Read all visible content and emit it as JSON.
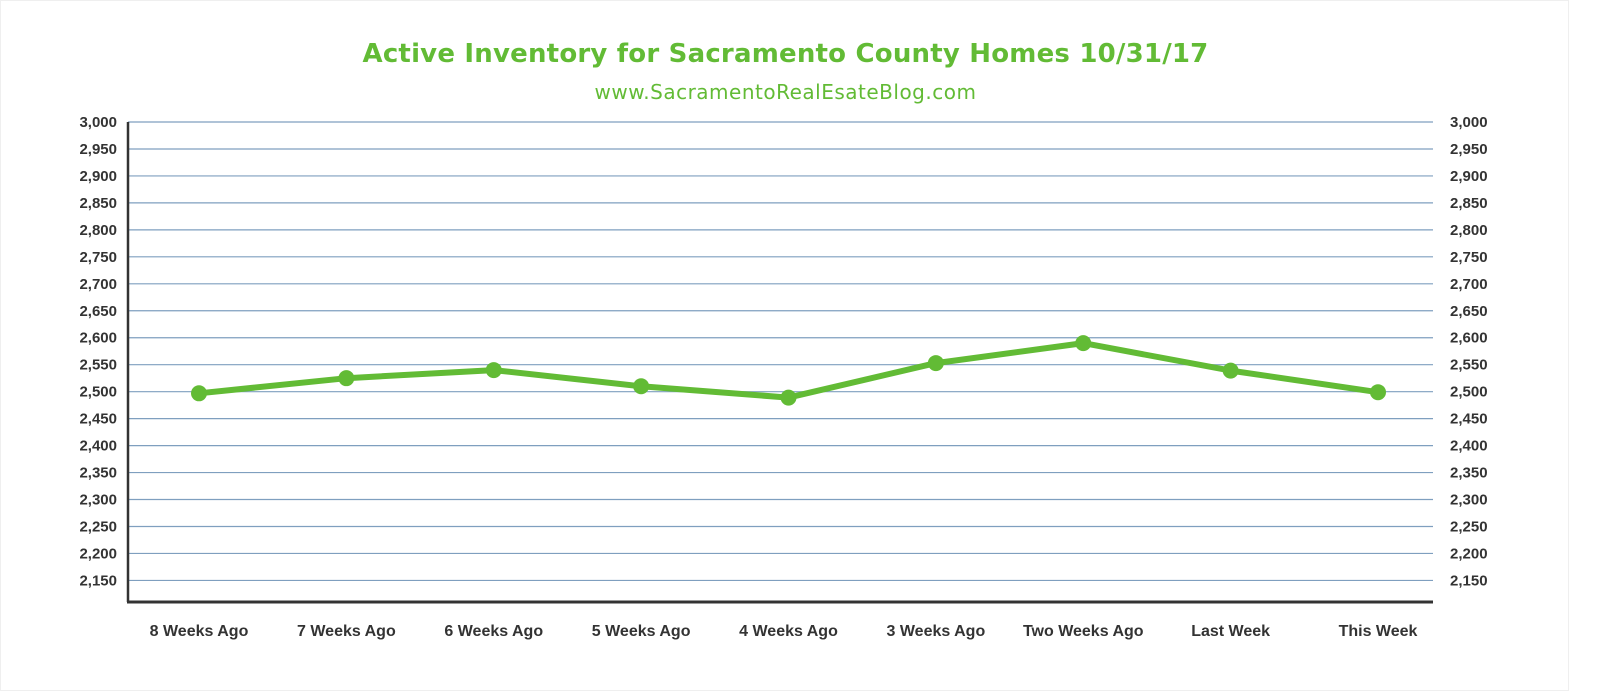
{
  "chart_data": {
    "type": "line",
    "title": "Active Inventory for Sacramento County Homes 10/31/17",
    "subtitle": "www.SacramentoRealEsateBlog.com",
    "categories": [
      "8 Weeks Ago",
      "7 Weeks Ago",
      "6 Weeks Ago",
      "5 Weeks Ago",
      "4 Weeks Ago",
      "3 Weeks Ago",
      "Two Weeks Ago",
      "Last Week",
      "This Week"
    ],
    "series": [
      {
        "values": [
          2497,
          2525,
          2540,
          2510,
          2489,
          2553,
          2590,
          2539,
          2499
        ]
      }
    ],
    "yticks": [
      "3,000",
      "2,950",
      "2,900",
      "2,850",
      "2,800",
      "2,750",
      "2,700",
      "2,650",
      "2,600",
      "2,550",
      "2,500",
      "2,450",
      "2,400",
      "2,350",
      "2,300",
      "2,250",
      "2,200",
      "2,150"
    ],
    "ylim": [
      2110,
      3000
    ],
    "grid": true,
    "secondary_y_axis": true,
    "line_color": "#62bb35",
    "grid_color": "#7f9fbf",
    "axis_color": "#333333"
  }
}
